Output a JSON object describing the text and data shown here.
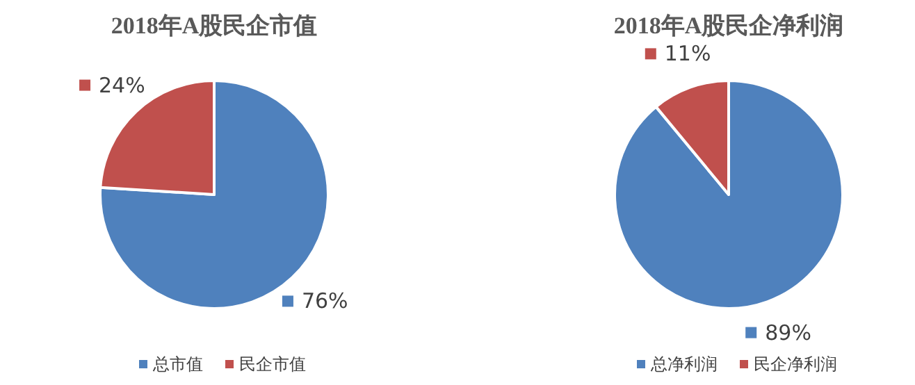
{
  "chart_data": [
    {
      "type": "pie",
      "title": "2018年A股民企市值",
      "categories": [
        "总市值",
        "民企市值"
      ],
      "values": [
        76,
        24
      ],
      "colors": [
        "#4f81bd",
        "#c0504d"
      ],
      "value_labels": [
        "76%",
        "24%"
      ],
      "legend": "bottom"
    },
    {
      "type": "pie",
      "title": "2018年A股民企净利润",
      "categories": [
        "总净利润",
        "民企净利润"
      ],
      "values": [
        89,
        11
      ],
      "colors": [
        "#4f81bd",
        "#c0504d"
      ],
      "value_labels": [
        "89%",
        "11%"
      ],
      "legend": "bottom"
    }
  ]
}
